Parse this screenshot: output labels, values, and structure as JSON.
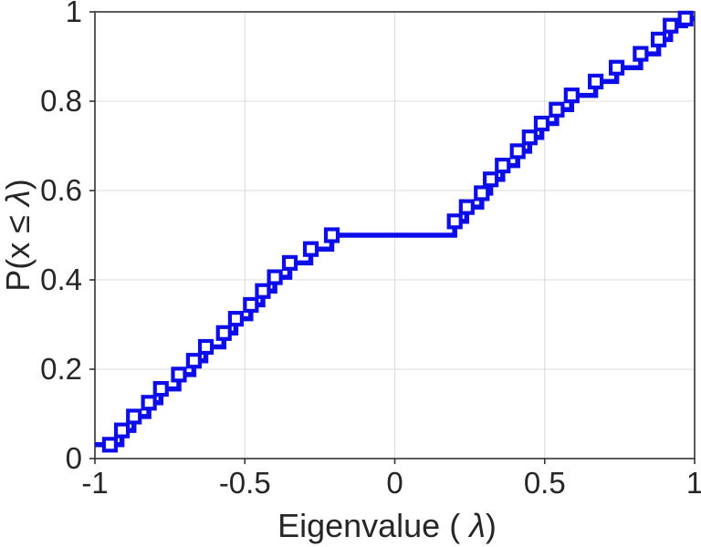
{
  "chart_data": {
    "type": "line",
    "subtype": "empirical-cdf-stairs",
    "title": "",
    "xlabel": "Eigenvalue ( λ)",
    "ylabel": "P(x ≤ λ)",
    "xlim": [
      -1,
      1
    ],
    "ylim": [
      0,
      1
    ],
    "x_ticks": [
      -1,
      -0.5,
      0,
      0.5,
      1
    ],
    "x_tick_labels": [
      "-1",
      "-0.5",
      "0",
      "0.5",
      "1"
    ],
    "y_ticks": [
      0,
      0.2,
      0.4,
      0.6,
      0.8,
      1
    ],
    "y_tick_labels": [
      "0",
      "0.2",
      "0.4",
      "0.6",
      "0.8",
      "1"
    ],
    "grid": true,
    "legend": "none",
    "line_color": "#0d0dea",
    "axis_color": "#333333",
    "label_color": "#262626",
    "grid_color": "#dcdcdc",
    "marker": "open-square",
    "n_points": 32,
    "series": [
      {
        "name": "eigenvalue-ecdf",
        "x": [
          -0.95,
          -0.91,
          -0.87,
          -0.82,
          -0.78,
          -0.72,
          -0.67,
          -0.63,
          -0.57,
          -0.53,
          -0.48,
          -0.44,
          -0.4,
          -0.35,
          -0.28,
          -0.21,
          0.2,
          0.24,
          0.29,
          0.32,
          0.36,
          0.41,
          0.45,
          0.49,
          0.54,
          0.59,
          0.67,
          0.74,
          0.82,
          0.88,
          0.92,
          0.97
        ],
        "y": [
          0.031,
          0.063,
          0.094,
          0.125,
          0.156,
          0.188,
          0.219,
          0.25,
          0.281,
          0.313,
          0.344,
          0.375,
          0.406,
          0.438,
          0.469,
          0.5,
          0.531,
          0.563,
          0.594,
          0.625,
          0.656,
          0.688,
          0.719,
          0.75,
          0.781,
          0.813,
          0.844,
          0.875,
          0.906,
          0.938,
          0.969,
          0.985
        ]
      }
    ],
    "annotations": {
      "plateau_level": 0.5,
      "plateau_x_range": [
        -0.21,
        0.2
      ],
      "start_point": [
        -1,
        0.031
      ],
      "end_point": [
        1,
        0.985
      ]
    }
  }
}
